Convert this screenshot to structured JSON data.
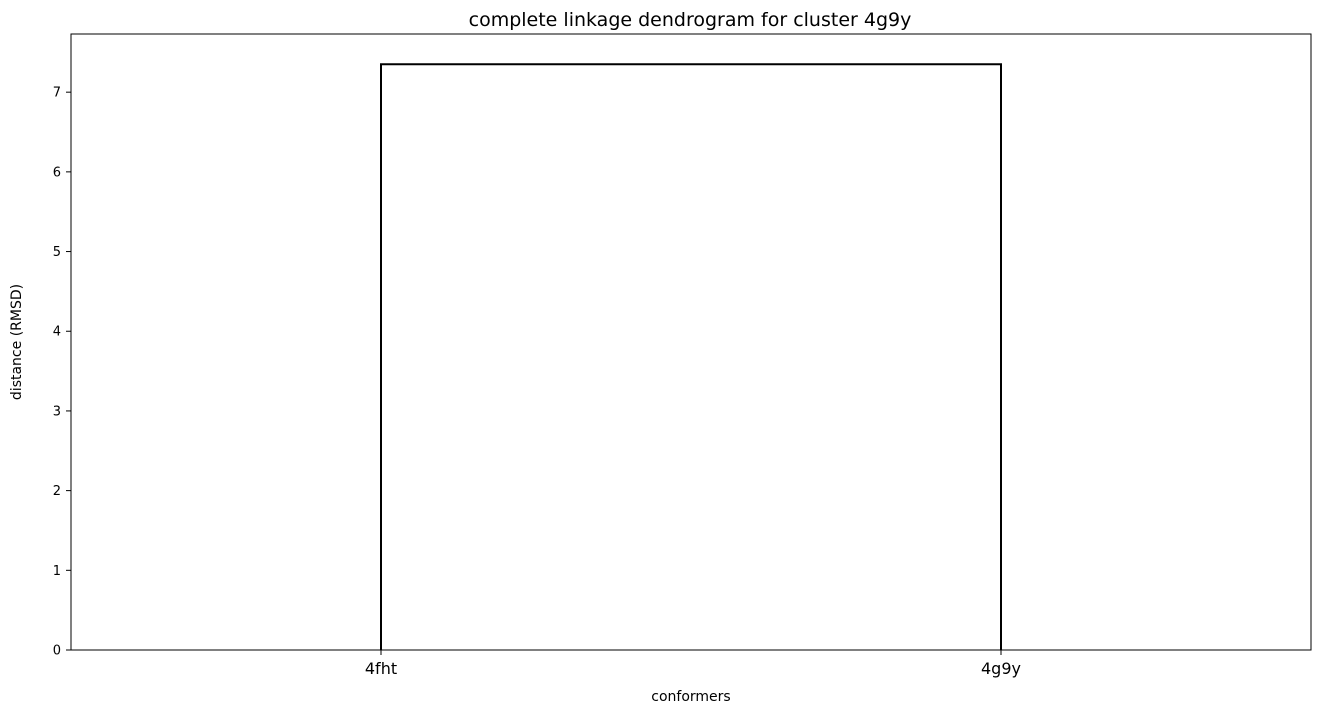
{
  "chart_data": {
    "type": "dendrogram",
    "title": "complete linkage dendrogram for cluster 4g9y",
    "xlabel": "conformers",
    "ylabel": "distance (RMSD)",
    "leaves": [
      "4fht",
      "4g9y"
    ],
    "links": [
      {
        "left": "4fht",
        "right": "4g9y",
        "distance": 7.35
      }
    ],
    "ylim": [
      0,
      7.73
    ],
    "yticks": [
      0,
      1,
      2,
      3,
      4,
      5,
      6,
      7
    ],
    "grid": false,
    "line_color": "#000000"
  }
}
